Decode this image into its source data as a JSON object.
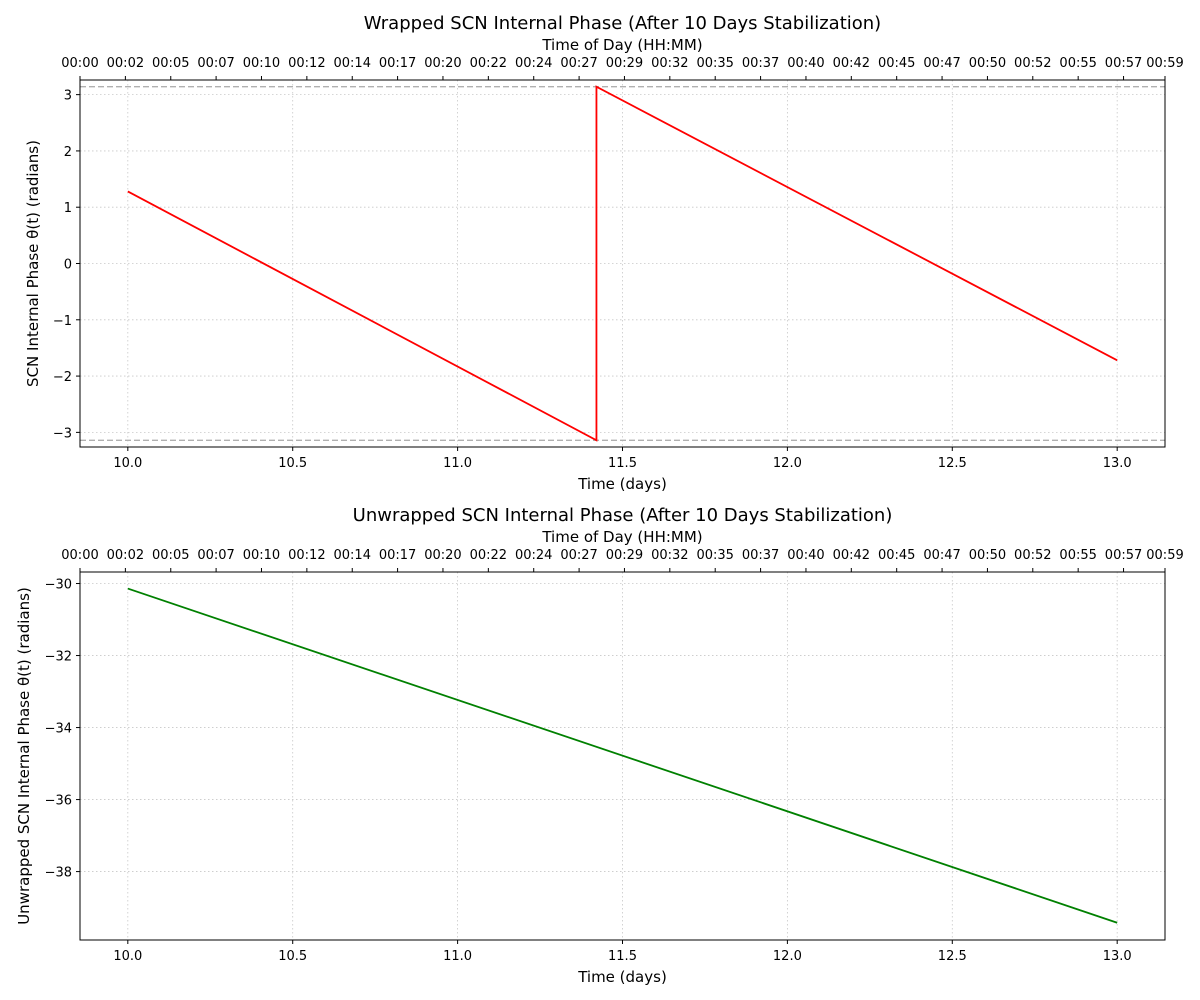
{
  "chart_data": [
    {
      "type": "line",
      "title": "Wrapped SCN Internal Phase (After 10 Days Stabilization)",
      "xlabel": "Time (days)",
      "ylabel": "SCN Internal Phase θ(t) (radians)",
      "xlim": [
        9.855,
        13.145
      ],
      "ylim": [
        -3.26,
        3.26
      ],
      "xticks": [
        10.0,
        10.5,
        11.0,
        11.5,
        12.0,
        12.5,
        13.0
      ],
      "xtick_labels": [
        "10.0",
        "10.5",
        "11.0",
        "11.5",
        "12.0",
        "12.5",
        "13.0"
      ],
      "yticks": [
        -3,
        -2,
        -1,
        0,
        1,
        2,
        3
      ],
      "ytick_labels": [
        "−3",
        "−2",
        "−1",
        "0",
        "1",
        "2",
        "3"
      ],
      "top_axis": {
        "label": "Time of Day (HH:MM)",
        "ticks": [
          9.855,
          9.9926,
          10.1302,
          10.2677,
          10.4053,
          10.5429,
          10.6805,
          10.818,
          10.9556,
          11.0932,
          11.2308,
          11.3684,
          11.5059,
          11.6435,
          11.7811,
          11.9187,
          12.0563,
          12.1938,
          12.3314,
          12.469,
          12.6066,
          12.7441,
          12.8817,
          13.0193,
          13.145
        ],
        "tick_labels": [
          "00:00",
          "00:02",
          "00:05",
          "00:07",
          "00:10",
          "00:12",
          "00:14",
          "00:17",
          "00:20",
          "00:22",
          "00:24",
          "00:27",
          "00:29",
          "00:32",
          "00:35",
          "00:37",
          "00:40",
          "00:42",
          "00:45",
          "00:47",
          "00:50",
          "00:52",
          "00:55",
          "00:57",
          "00:59"
        ]
      },
      "hlines": [
        3.14159,
        -3.14159
      ],
      "grid": true,
      "series": [
        {
          "color": "#ff0000",
          "x": [
            10.0,
            11.421,
            11.421,
            13.0
          ],
          "y": [
            1.28,
            -3.14,
            3.14,
            -1.72
          ]
        }
      ]
    },
    {
      "type": "line",
      "title": "Unwrapped SCN Internal Phase (After 10 Days Stabilization)",
      "xlabel": "Time (days)",
      "ylabel": "Unwrapped SCN Internal Phase θ(t) (radians)",
      "xlim": [
        9.855,
        13.145
      ],
      "ylim": [
        -39.9,
        -29.68
      ],
      "xticks": [
        10.0,
        10.5,
        11.0,
        11.5,
        12.0,
        12.5,
        13.0
      ],
      "xtick_labels": [
        "10.0",
        "10.5",
        "11.0",
        "11.5",
        "12.0",
        "12.5",
        "13.0"
      ],
      "yticks": [
        -38,
        -36,
        -34,
        -32,
        -30
      ],
      "ytick_labels": [
        "−38",
        "−36",
        "−34",
        "−32",
        "−30"
      ],
      "top_axis": {
        "label": "Time of Day (HH:MM)",
        "ticks": [
          9.855,
          9.9926,
          10.1302,
          10.2677,
          10.4053,
          10.5429,
          10.6805,
          10.818,
          10.9556,
          11.0932,
          11.2308,
          11.3684,
          11.5059,
          11.6435,
          11.7811,
          11.9187,
          12.0563,
          12.1938,
          12.3314,
          12.469,
          12.6066,
          12.7441,
          12.8817,
          13.0193,
          13.145
        ],
        "tick_labels": [
          "00:00",
          "00:02",
          "00:05",
          "00:07",
          "00:10",
          "00:12",
          "00:14",
          "00:17",
          "00:20",
          "00:22",
          "00:24",
          "00:27",
          "00:29",
          "00:32",
          "00:35",
          "00:37",
          "00:40",
          "00:42",
          "00:45",
          "00:47",
          "00:50",
          "00:52",
          "00:55",
          "00:57",
          "00:59"
        ]
      },
      "hlines": [],
      "grid": true,
      "series": [
        {
          "color": "#008000",
          "x": [
            10.0,
            13.0
          ],
          "y": [
            -30.14,
            -39.42
          ]
        }
      ]
    }
  ]
}
